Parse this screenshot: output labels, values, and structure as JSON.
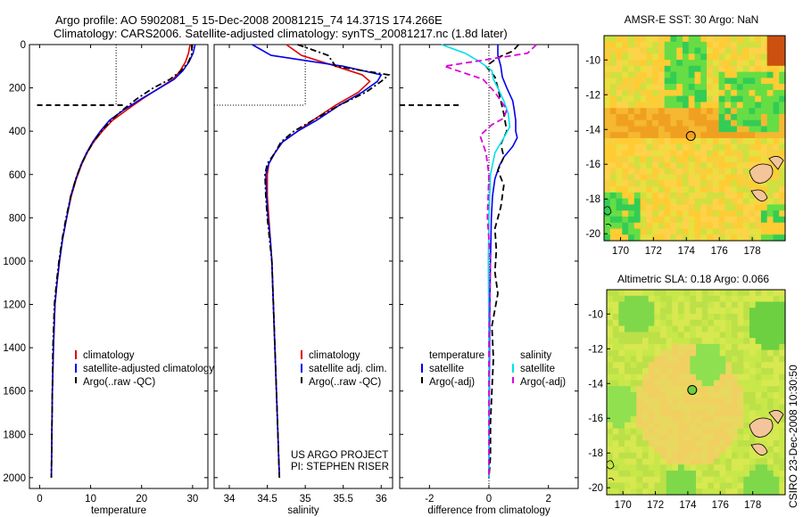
{
  "header": {
    "line1": "Argo profile: AO 5902081_5 15-Dec-2008 20081215_74 14.371S 174.266E",
    "line2": "Climatology: CARS2006. Satellite-adjusted climatology: synTS_20081217.nc (1.8d later)"
  },
  "side_label": "CSIRO 23-Dec-2008 10:30:50",
  "colors": {
    "climatology": "#dd0000",
    "satellite": "#0000ee",
    "argo": "#000000",
    "sal_sat": "#00e0e8",
    "sal_argo": "#dd00dd"
  },
  "chart_data": [
    {
      "type": "line",
      "id": "temperature",
      "xlabel": "temperature",
      "ylabel": "",
      "xlim": [
        -2,
        33
      ],
      "ylim": [
        2050,
        0
      ],
      "xticks": [
        0,
        10,
        20,
        30
      ],
      "yticks": [
        0,
        200,
        400,
        600,
        800,
        1000,
        1200,
        1400,
        1600,
        1800,
        2000
      ],
      "legend": [
        "climatology",
        "satellite-adjusted climatology",
        "Argo(..raw -QC)"
      ],
      "series": [
        {
          "name": "climatology",
          "style": "solid",
          "color": "#dd0000",
          "x": [
            29.5,
            29.2,
            28.6,
            27.6,
            26.2,
            23.5,
            20.2,
            17.2,
            14.3,
            12.3,
            10.6,
            9.3,
            8.3,
            7.2,
            6.2,
            5.3,
            4.5,
            3.9,
            3.4,
            3.0,
            2.7,
            2.5,
            2.4,
            2.3
          ],
          "y": [
            0,
            40,
            80,
            120,
            160,
            200,
            250,
            300,
            350,
            400,
            450,
            500,
            550,
            620,
            700,
            800,
            900,
            1000,
            1100,
            1200,
            1400,
            1600,
            1800,
            2000
          ]
        },
        {
          "name": "satellite-adjusted climatology",
          "style": "solid",
          "color": "#0000ee",
          "x": [
            30.5,
            30.1,
            29.3,
            28.1,
            26.4,
            23.6,
            20.0,
            16.6,
            13.7,
            11.9,
            10.4,
            9.2,
            8.2,
            7.1,
            6.1,
            5.3,
            4.5,
            3.9,
            3.4,
            3.0,
            2.7,
            2.5,
            2.4,
            2.3
          ],
          "y": [
            0,
            40,
            80,
            120,
            160,
            200,
            250,
            300,
            350,
            400,
            450,
            500,
            550,
            620,
            700,
            800,
            900,
            1000,
            1100,
            1200,
            1400,
            1600,
            1800,
            2000
          ]
        },
        {
          "name": "Argo(..raw -QC)",
          "style": "dashdot",
          "color": "#000000",
          "x": [
            29.8,
            29.9,
            29.2,
            27.8,
            25.6,
            22.3,
            19.1,
            16.4,
            14.0,
            12.1,
            10.5,
            9.3,
            8.2,
            7.1,
            6.1,
            5.2,
            4.4,
            3.8,
            3.3,
            2.9,
            2.6,
            2.5,
            2.4,
            2.3
          ],
          "y": [
            0,
            40,
            80,
            120,
            160,
            200,
            250,
            300,
            350,
            400,
            450,
            500,
            550,
            620,
            700,
            800,
            900,
            1000,
            1100,
            1200,
            1400,
            1600,
            1800,
            2000
          ]
        }
      ],
      "markers": {
        "mld_dashed": {
          "x": [
            -0.5,
            17
          ],
          "y": 280
        },
        "mld_dotted_x": 15
      }
    },
    {
      "type": "line",
      "id": "salinity",
      "xlabel": "salinity",
      "ylabel": "",
      "xlim": [
        33.8,
        36.15
      ],
      "ylim": [
        2050,
        0
      ],
      "xticks": [
        34,
        34.5,
        35,
        35.5,
        36
      ],
      "legend": [
        "climatology",
        "satellite adj. clim.",
        "Argo(..raw -QC)"
      ],
      "series": [
        {
          "name": "climatology",
          "style": "solid",
          "color": "#dd0000",
          "x": [
            34.75,
            34.95,
            35.4,
            35.75,
            35.85,
            35.7,
            35.4,
            35.1,
            34.9,
            34.7,
            34.6,
            34.52,
            34.5,
            34.5,
            34.52,
            34.54,
            34.56,
            34.58,
            34.6,
            34.62,
            34.64,
            34.65,
            34.66
          ],
          "y": [
            0,
            50,
            100,
            140,
            170,
            220,
            280,
            350,
            400,
            450,
            500,
            550,
            600,
            700,
            800,
            900,
            1000,
            1200,
            1400,
            1600,
            1800,
            1900,
            2000
          ]
        },
        {
          "name": "satellite adj. clim.",
          "style": "solid",
          "color": "#0000ee",
          "x": [
            34.3,
            34.55,
            35.5,
            36.0,
            35.95,
            35.75,
            35.45,
            35.15,
            34.9,
            34.7,
            34.6,
            34.52,
            34.48,
            34.49,
            34.51,
            34.54,
            34.56,
            34.58,
            34.6,
            34.62,
            34.64,
            34.65,
            34.66
          ],
          "y": [
            0,
            50,
            100,
            140,
            170,
            220,
            280,
            350,
            400,
            450,
            500,
            550,
            600,
            700,
            800,
            900,
            1000,
            1200,
            1400,
            1600,
            1800,
            1900,
            2000
          ]
        },
        {
          "name": "Argo(..raw -QC)",
          "style": "dashdot",
          "color": "#000000",
          "x": [
            34.9,
            35.3,
            35.4,
            36.1,
            36.0,
            35.8,
            35.45,
            35.1,
            34.85,
            34.68,
            34.6,
            34.5,
            34.47,
            34.48,
            34.5,
            34.53,
            34.56,
            34.58,
            34.6,
            34.62,
            34.64,
            34.65,
            34.66
          ],
          "y": [
            0,
            50,
            100,
            140,
            170,
            220,
            280,
            350,
            400,
            450,
            500,
            550,
            600,
            700,
            800,
            900,
            1000,
            1200,
            1400,
            1600,
            1800,
            1900,
            2000
          ]
        }
      ],
      "markers": {
        "mld_dotted": {
          "x": [
            33.8,
            35.0
          ],
          "y": 280
        },
        "dotted_x": 35.0
      },
      "footer": [
        "US ARGO PROJECT",
        "PI: STEPHEN RISER"
      ]
    },
    {
      "type": "line",
      "id": "difference",
      "xlabel": "difference from climatology",
      "ylabel": "",
      "xlim": [
        -3,
        3
      ],
      "ylim": [
        2050,
        0
      ],
      "xticks": [
        -2,
        0,
        2
      ],
      "legend_temperature_title": "temperature",
      "legend_temperature": [
        "satellite",
        "Argo(-adj)"
      ],
      "legend_salinity_title": "salinity",
      "legend_salinity": [
        "satellite",
        "Argo(-adj)"
      ],
      "series": [
        {
          "name": "satellite",
          "group": "temperature",
          "style": "solid",
          "color": "#0000ee",
          "x": [
            0.3,
            0.3,
            0.4,
            0.45,
            0.6,
            0.8,
            0.85,
            0.9,
            0.9,
            0.95,
            0.8,
            0.5,
            0.35,
            0.2,
            0.12,
            0.08,
            0.05,
            0.03,
            0.02,
            0.01,
            0.0
          ],
          "y": [
            0,
            50,
            100,
            150,
            200,
            260,
            300,
            350,
            400,
            430,
            470,
            520,
            560,
            620,
            700,
            800,
            1000,
            1200,
            1400,
            1700,
            2000
          ]
        },
        {
          "name": "Argo(-adj)",
          "group": "temperature",
          "style": "dashed",
          "color": "#000000",
          "x": [
            1.0,
            0.8,
            0.3,
            -0.1,
            0.2,
            0.3,
            0.4,
            0.5,
            0.6,
            0.4,
            0.5,
            0.3,
            0.5,
            0.4,
            0.2,
            0.25,
            0.2,
            0.3,
            0.1,
            0.15,
            0.1,
            0.05,
            0.05,
            0.0
          ],
          "y": [
            0,
            30,
            60,
            100,
            150,
            200,
            260,
            320,
            400,
            460,
            520,
            580,
            650,
            750,
            850,
            950,
            1050,
            1150,
            1300,
            1450,
            1600,
            1750,
            1900,
            2000
          ]
        },
        {
          "name": "satellite",
          "group": "salinity",
          "style": "solid",
          "color": "#00e0e8",
          "x": [
            -1.6,
            -0.8,
            -0.3,
            0.1,
            0.15,
            0.3,
            0.5,
            0.65,
            0.7,
            0.5,
            0.2,
            0.05,
            0.0,
            -0.02,
            0.0,
            0.0
          ],
          "y": [
            0,
            40,
            80,
            120,
            160,
            200,
            260,
            320,
            380,
            430,
            500,
            600,
            800,
            1000,
            1400,
            2000
          ]
        },
        {
          "name": "Argo(-adj)",
          "group": "salinity",
          "style": "dashed",
          "color": "#dd00dd",
          "x": [
            1.6,
            1.3,
            -1.5,
            -0.2,
            0.2,
            0.6,
            0.5,
            0.1,
            -0.3,
            -0.1,
            0.0,
            -0.05,
            0.05,
            0.0,
            0.0
          ],
          "y": [
            0,
            40,
            100,
            160,
            220,
            300,
            340,
            370,
            420,
            500,
            600,
            800,
            1000,
            1400,
            2000
          ]
        }
      ],
      "markers": {
        "mld_dashed": {
          "x": [
            -3,
            -1
          ],
          "y": 280
        },
        "zero_line": 0
      }
    }
  ],
  "maps": [
    {
      "title": "AMSR-E SST: 30 Argo: NaN",
      "xticks": [
        170,
        172,
        174,
        176,
        178
      ],
      "yticks": [
        -10,
        -12,
        -14,
        -16,
        -18,
        -20
      ],
      "xlim": [
        169,
        180
      ],
      "ylim": [
        -20.4,
        -8.6
      ],
      "argo": [
        174.27,
        -14.37
      ]
    },
    {
      "title": "Altimetric SLA: 0.18 Argo: 0.066",
      "xticks": [
        170,
        172,
        174,
        176,
        178
      ],
      "yticks": [
        -10,
        -12,
        -14,
        -16,
        -18,
        -20
      ],
      "xlim": [
        169,
        180
      ],
      "ylim": [
        -20.4,
        -8.6
      ],
      "argo": [
        174.27,
        -14.37
      ]
    }
  ]
}
